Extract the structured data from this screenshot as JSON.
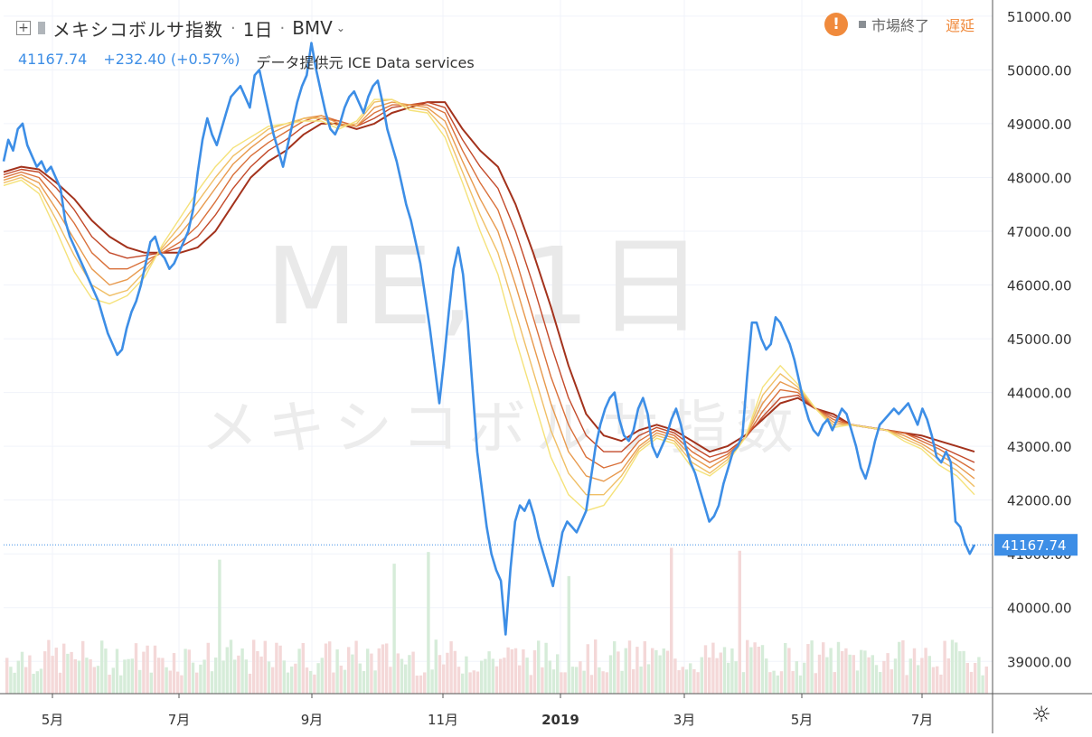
{
  "header": {
    "symbol_name": "メキシコボルサ指数",
    "interval": "1日",
    "exchange": "BMV",
    "price": "41167.74",
    "change": "+232.40 (+0.57%)",
    "provider": "データ提供元 ICE Data services",
    "status_label": "市場終了",
    "delayed_label": "遅延"
  },
  "watermark": {
    "big": "ME, 1日",
    "small": "メキシコボルサ指数"
  },
  "chart_data": {
    "type": "line",
    "ylim": [
      38400,
      51300
    ],
    "yticks": [
      39000,
      40000,
      41000,
      42000,
      43000,
      44000,
      45000,
      46000,
      47000,
      48000,
      49000,
      50000,
      51000
    ],
    "ytick_labels": [
      "39000.00",
      "40000.00",
      "41000.00",
      "42000.00",
      "43000.00",
      "44000.00",
      "45000.00",
      "46000.00",
      "47000.00",
      "48000.00",
      "49000.00",
      "50000.00",
      "51000.00"
    ],
    "xtick_labels": [
      "5月",
      "7月",
      "9月",
      "11月",
      "2019",
      "3月",
      "5月",
      "7月"
    ],
    "last_value": 41167.74,
    "last_value_label": "41167.74",
    "colors": {
      "price": "#3d8ee6",
      "ribbon_fast": "#f5e27a",
      "ribbon_slow": "#a3321c",
      "grid": "#f0f3fa",
      "volume_up": "#d6ecd9",
      "volume_down": "#f4d8d8",
      "price_tag": "#3d8ee6"
    },
    "series": [
      {
        "values": [
          48300,
          48700,
          48500,
          48900,
          49000,
          48600,
          48400,
          48200,
          48300,
          48100,
          48200,
          48000,
          47800,
          47200,
          46900,
          46700,
          46500,
          46300,
          46100,
          45900,
          45700,
          45400,
          45100,
          44900,
          44700,
          44800,
          45200,
          45500,
          45700,
          46000,
          46400,
          46800,
          46900,
          46600,
          46500,
          46300,
          46400,
          46600,
          46800,
          47000,
          47400,
          48100,
          48700,
          49100,
          48800,
          48600,
          48900,
          49200,
          49500,
          49600,
          49700,
          49500,
          49300,
          49900,
          50000,
          49600,
          49200,
          48800,
          48500,
          48200,
          48600,
          49000,
          49400,
          49700,
          49900,
          50500,
          50000,
          49600,
          49200,
          48900,
          48800,
          49000,
          49300,
          49500,
          49600,
          49400,
          49200,
          49500,
          49700,
          49800,
          49400,
          48900,
          48600,
          48300,
          47900,
          47500,
          47200,
          46800,
          46400,
          45800,
          45200,
          44500,
          43800,
          44600,
          45500,
          46300,
          46700,
          46200,
          45300,
          44100,
          42900,
          42200,
          41500,
          41000,
          40700,
          40500,
          39500,
          40700,
          41600,
          41900,
          41800,
          42000,
          41700,
          41300,
          41000,
          40700,
          40400,
          40900,
          41400,
          41600,
          41500,
          41400,
          41600,
          41800,
          42400,
          43000,
          43400,
          43700,
          43900,
          44000,
          43500,
          43200,
          43100,
          43300,
          43700,
          43900,
          43600,
          43000,
          42800,
          43000,
          43200,
          43500,
          43700,
          43400,
          43000,
          42700,
          42500,
          42200,
          41900,
          41600,
          41700,
          41900,
          42300,
          42600,
          42900,
          43000,
          43200,
          44300,
          45300,
          45300,
          45000,
          44800,
          44900,
          45400,
          45300,
          45100,
          44900,
          44600,
          44200,
          43800,
          43500,
          43300,
          43200,
          43400,
          43500,
          43300,
          43500,
          43700,
          43600,
          43300,
          43000,
          42600,
          42400,
          42700,
          43100,
          43400,
          43500,
          43600,
          43700,
          43600,
          43700,
          43800,
          43600,
          43400,
          43700,
          43500,
          43200,
          42800,
          42700,
          42900,
          42700,
          41600,
          41500,
          41200,
          41000,
          41170
        ]
      },
      {
        "values": [
          48100,
          48200,
          48150,
          47900,
          47600,
          47200,
          46900,
          46700,
          46600,
          46600,
          46600,
          46700,
          47000,
          47500,
          48000,
          48300,
          48500,
          48800,
          49000,
          49000,
          48900,
          49000,
          49200,
          49300,
          49400,
          49400,
          48900,
          48500,
          48200,
          47500,
          46600,
          45600,
          44500,
          43600,
          43200,
          43100,
          43300,
          43400,
          43300,
          43100,
          42900,
          43000,
          43200,
          43500,
          43800,
          43900,
          43700,
          43600,
          43400,
          43350,
          43300,
          43250,
          43200,
          43100,
          43000,
          42900
        ]
      },
      {
        "values": [
          48050,
          48150,
          48100,
          47800,
          47400,
          46900,
          46600,
          46500,
          46550,
          46600,
          46700,
          46900,
          47300,
          47800,
          48200,
          48500,
          48700,
          48950,
          49100,
          49050,
          48950,
          49100,
          49300,
          49350,
          49400,
          49300,
          48700,
          48200,
          47800,
          47000,
          46000,
          44900,
          43900,
          43200,
          42900,
          42900,
          43200,
          43350,
          43250,
          43000,
          42800,
          42900,
          43150,
          43550,
          43900,
          43950,
          43700,
          43550,
          43400,
          43350,
          43300,
          43250,
          43150,
          43000,
          42850,
          42700
        ]
      },
      {
        "values": [
          48000,
          48100,
          48000,
          47600,
          47150,
          46600,
          46300,
          46300,
          46450,
          46600,
          46800,
          47100,
          47550,
          48050,
          48400,
          48650,
          48850,
          49050,
          49150,
          49050,
          48950,
          49200,
          49350,
          49350,
          49350,
          49200,
          48500,
          47900,
          47400,
          46500,
          45400,
          44300,
          43400,
          42800,
          42600,
          42700,
          43100,
          43300,
          43200,
          42900,
          42700,
          42850,
          43150,
          43650,
          44050,
          44000,
          43700,
          43500,
          43400,
          43350,
          43300,
          43250,
          43100,
          42950,
          42750,
          42550
        ]
      },
      {
        "values": [
          47950,
          48050,
          47900,
          47400,
          46850,
          46300,
          46000,
          46100,
          46350,
          46650,
          46950,
          47350,
          47800,
          48250,
          48550,
          48800,
          48950,
          49100,
          49150,
          49000,
          48950,
          49300,
          49400,
          49350,
          49300,
          49050,
          48300,
          47600,
          47000,
          46000,
          44900,
          43800,
          42900,
          42450,
          42350,
          42550,
          43000,
          43250,
          43150,
          42800,
          42600,
          42800,
          43150,
          43800,
          44200,
          44050,
          43700,
          43450,
          43400,
          43350,
          43300,
          43200,
          43050,
          42850,
          42650,
          42400
        ]
      },
      {
        "values": [
          47900,
          48000,
          47800,
          47200,
          46550,
          46000,
          45800,
          45900,
          46250,
          46700,
          47100,
          47550,
          48000,
          48400,
          48650,
          48900,
          49000,
          49100,
          49100,
          48950,
          49000,
          49400,
          49450,
          49300,
          49250,
          48900,
          48100,
          47300,
          46600,
          45500,
          44400,
          43300,
          42500,
          42100,
          42100,
          42450,
          42950,
          43200,
          43100,
          42700,
          42500,
          42750,
          43150,
          43950,
          44350,
          44100,
          43700,
          43400,
          43400,
          43350,
          43300,
          43150,
          43000,
          42750,
          42550,
          42250
        ]
      },
      {
        "values": [
          47850,
          47950,
          47700,
          47000,
          46250,
          45750,
          45650,
          45800,
          46150,
          46750,
          47250,
          47750,
          48200,
          48550,
          48750,
          48950,
          49000,
          49050,
          49050,
          48900,
          49050,
          49450,
          49450,
          49250,
          49200,
          48750,
          47900,
          47000,
          46200,
          45000,
          43900,
          42800,
          42100,
          41800,
          41900,
          42350,
          42900,
          43150,
          43050,
          42600,
          42450,
          42700,
          43150,
          44100,
          44500,
          44150,
          43700,
          43350,
          43400,
          43350,
          43300,
          43100,
          42950,
          42650,
          42450,
          42100
        ]
      }
    ]
  }
}
